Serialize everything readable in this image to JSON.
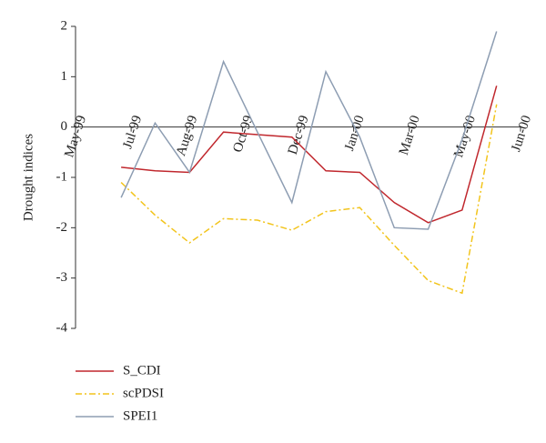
{
  "chart_data": {
    "type": "line",
    "y_label": "Drought indices",
    "x": [
      0.82,
      1.43,
      2.05,
      2.66,
      3.27,
      3.89,
      4.5,
      5.11,
      5.73,
      6.34,
      6.95,
      7.57
    ],
    "xlim": [
      0,
      8
    ],
    "xticks": [
      {
        "value": 0,
        "label": "May-99"
      },
      {
        "value": 1,
        "label": "Jul-99"
      },
      {
        "value": 2,
        "label": "Aug-99"
      },
      {
        "value": 3,
        "label": "Oct-99"
      },
      {
        "value": 4,
        "label": "Dec-99"
      },
      {
        "value": 5,
        "label": "Jan-00"
      },
      {
        "value": 6,
        "label": "Mar-00"
      },
      {
        "value": 7,
        "label": "May-00"
      },
      {
        "value": 8,
        "label": "Jun-00"
      }
    ],
    "ylim": [
      -4,
      2
    ],
    "yticks": [
      -4,
      -3,
      -2,
      -1,
      0,
      1,
      2
    ],
    "legend": "bottom-left",
    "series": [
      {
        "name": "S_CDI",
        "color": "#c0272d",
        "dash": "solid",
        "values": [
          -0.8,
          -0.87,
          -0.9,
          -0.1,
          -0.15,
          -0.2,
          -0.87,
          -0.9,
          -1.5,
          -1.9,
          -1.65,
          0.82
        ]
      },
      {
        "name": "scPDSI",
        "color": "#f2c41c",
        "dash": "dashdot",
        "values": [
          -1.1,
          -1.75,
          -2.3,
          -1.82,
          -1.85,
          -2.05,
          -1.68,
          -1.6,
          -2.35,
          -3.05,
          -3.3,
          0.45
        ]
      },
      {
        "name": "SPEI1",
        "color": "#8d9db2",
        "dash": "solid",
        "values": [
          -1.4,
          0.08,
          -0.9,
          1.3,
          -0.1,
          -1.5,
          1.1,
          -0.2,
          -2.0,
          -2.03,
          -0.25,
          1.9
        ]
      }
    ]
  }
}
